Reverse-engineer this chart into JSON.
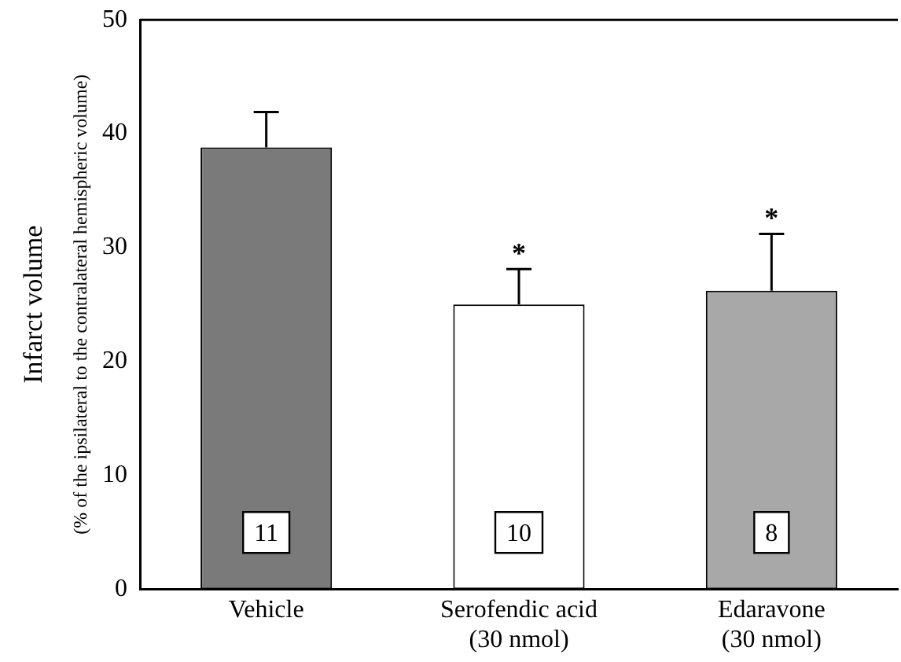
{
  "chart_data": {
    "type": "bar",
    "ylabel": "Infarct volume\n(% of the ipsilateral to the contralateral hemispheric volume)",
    "categories": [
      "Vehicle",
      "Serofendic acid\n(30 nmol)",
      "Edaravone\n(30 nmol)"
    ],
    "values": [
      38.8,
      25.0,
      26.2
    ],
    "errors": [
      [
        38.8,
        41.9
      ],
      [
        25.0,
        28.1
      ],
      [
        26.2,
        31.2
      ]
    ],
    "colors": [
      "#7a7a7a",
      "#ffffff",
      "#a8a8a8"
    ],
    "ylim": [
      0,
      50
    ],
    "yticks": [
      0,
      10,
      20,
      30,
      40,
      50
    ],
    "grid": false,
    "legend": false,
    "annotations": [
      {
        "text": "11",
        "x": "Vehicle"
      },
      {
        "text": "10",
        "x": "Serofendic acid\n(30 nmol)"
      },
      {
        "text": "8",
        "x": "Edaravone\n(30 nmol)"
      },
      "*",
      "*"
    ]
  }
}
